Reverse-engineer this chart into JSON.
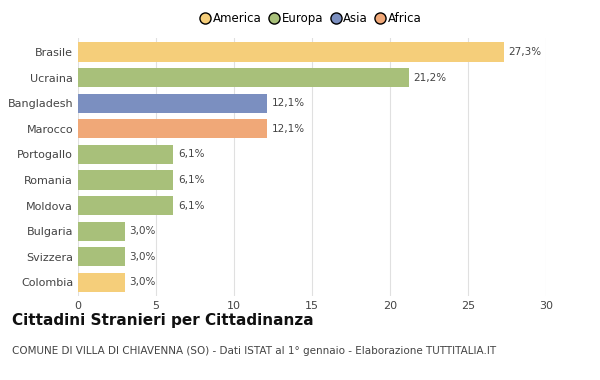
{
  "categories": [
    "Brasile",
    "Ucraina",
    "Bangladesh",
    "Marocco",
    "Portogallo",
    "Romania",
    "Moldova",
    "Bulgaria",
    "Svizzera",
    "Colombia"
  ],
  "values": [
    27.3,
    21.2,
    12.1,
    12.1,
    6.1,
    6.1,
    6.1,
    3.0,
    3.0,
    3.0
  ],
  "labels": [
    "27,3%",
    "21,2%",
    "12,1%",
    "12,1%",
    "6,1%",
    "6,1%",
    "6,1%",
    "3,0%",
    "3,0%",
    "3,0%"
  ],
  "colors": [
    "#F5CE7A",
    "#A8C07A",
    "#7B8FC0",
    "#F0A878",
    "#A8C07A",
    "#A8C07A",
    "#A8C07A",
    "#A8C07A",
    "#A8C07A",
    "#F5CE7A"
  ],
  "legend_labels": [
    "America",
    "Europa",
    "Asia",
    "Africa"
  ],
  "legend_colors": [
    "#F5CE7A",
    "#A8C07A",
    "#7B8FC0",
    "#F0A878"
  ],
  "title": "Cittadini Stranieri per Cittadinanza",
  "subtitle": "COMUNE DI VILLA DI CHIAVENNA (SO) - Dati ISTAT al 1° gennaio - Elaborazione TUTTITALIA.IT",
  "xlim": [
    0,
    30
  ],
  "xticks": [
    0,
    5,
    10,
    15,
    20,
    25,
    30
  ],
  "background_color": "#ffffff",
  "grid_color": "#e0e0e0",
  "bar_height": 0.75,
  "title_fontsize": 11,
  "subtitle_fontsize": 7.5,
  "label_fontsize": 7.5,
  "tick_fontsize": 8,
  "legend_fontsize": 8.5
}
